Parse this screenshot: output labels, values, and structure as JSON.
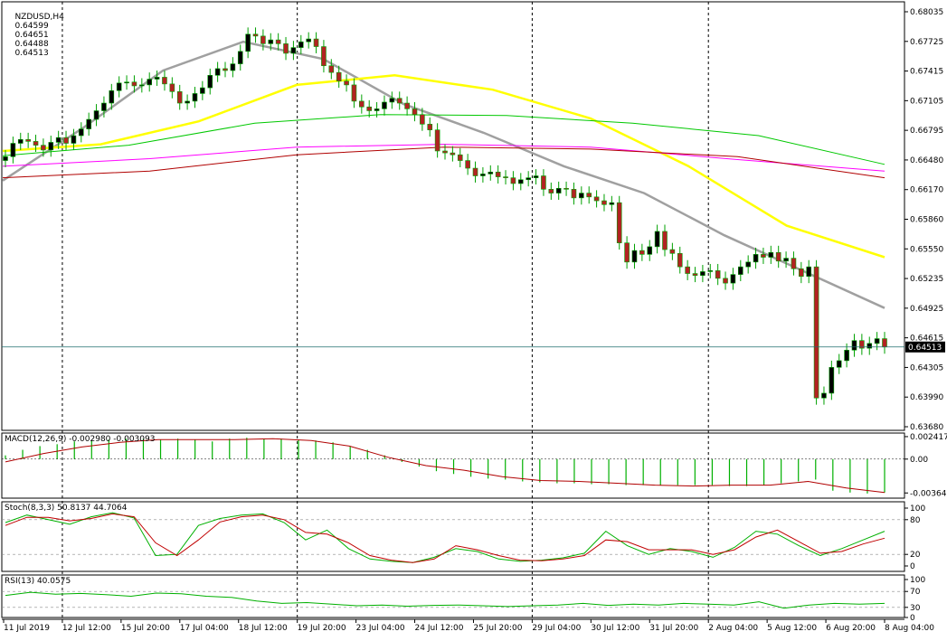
{
  "chart_data": [
    {
      "type": "candlestick",
      "symbol": "NZDUSD",
      "timeframe": "H4",
      "ohlc_header": {
        "open": "0.64599",
        "high": "0.64651",
        "low": "0.64488",
        "close": "0.64513"
      },
      "current_price": 0.64513,
      "current_price_label": "0.64513",
      "ylim": [
        0.6368,
        0.6808
      ],
      "y_ticks": [
        "0.68035",
        "0.67725",
        "0.67415",
        "0.67105",
        "0.66795",
        "0.66480",
        "0.66170",
        "0.65860",
        "0.65550",
        "0.65235",
        "0.64925",
        "0.64615",
        "0.64305",
        "0.63990",
        "0.63680"
      ],
      "x_ticks": [
        "11 Jul 2019",
        "12 Jul 12:00",
        "15 Jul 20:00",
        "17 Jul 04:00",
        "18 Jul 12:00",
        "19 Jul 20:00",
        "23 Jul 04:00",
        "24 Jul 12:00",
        "25 Jul 20:00",
        "29 Jul 04:00",
        "30 Jul 12:00",
        "31 Jul 20:00",
        "2 Aug 04:00",
        "5 Aug 12:00",
        "6 Aug 20:00",
        "8 Aug 04:00"
      ],
      "day_separators": [
        "12 Jul 12:00",
        "19 Jul 20:00",
        "29 Jul 04:00",
        "2 Aug 04:00"
      ],
      "candles_close": [
        0.665,
        0.6664,
        0.6668,
        0.6666,
        0.6662,
        0.6657,
        0.6665,
        0.667,
        0.6664,
        0.6672,
        0.6679,
        0.6689,
        0.6698,
        0.6706,
        0.6719,
        0.6727,
        0.6728,
        0.6724,
        0.6725,
        0.6731,
        0.6733,
        0.6726,
        0.6718,
        0.6706,
        0.6708,
        0.6716,
        0.6722,
        0.6735,
        0.6742,
        0.674,
        0.6747,
        0.676,
        0.6778,
        0.6776,
        0.6768,
        0.6772,
        0.6768,
        0.6758,
        0.6764,
        0.677,
        0.6773,
        0.6765,
        0.6745,
        0.6738,
        0.6729,
        0.6725,
        0.6708,
        0.6702,
        0.6698,
        0.67,
        0.6707,
        0.6711,
        0.6706,
        0.67,
        0.6694,
        0.6684,
        0.6678,
        0.6656,
        0.6654,
        0.6652,
        0.6646,
        0.6638,
        0.663,
        0.6632,
        0.6634,
        0.6629,
        0.6628,
        0.6622,
        0.6626,
        0.6628,
        0.663,
        0.6616,
        0.6612,
        0.6617,
        0.6616,
        0.6607,
        0.6612,
        0.6608,
        0.6604,
        0.66,
        0.6602,
        0.656,
        0.654,
        0.6552,
        0.6548,
        0.6556,
        0.6572,
        0.6553,
        0.6549,
        0.6535,
        0.6528,
        0.6526,
        0.653,
        0.6531,
        0.6523,
        0.6518,
        0.6527,
        0.6535,
        0.654,
        0.6548,
        0.6545,
        0.655,
        0.6541,
        0.6544,
        0.6533,
        0.6525,
        0.6535,
        0.6398,
        0.6403,
        0.643,
        0.6437,
        0.6448,
        0.6458,
        0.645,
        0.6455,
        0.646,
        0.64513
      ],
      "indicators": {
        "moving_averages": [
          {
            "color": "#a0a0a0",
            "values": [
              0.6625,
              0.668,
              0.674,
              0.677,
              0.6752,
              0.6705,
              0.6675,
              0.664,
              0.6612,
              0.6568,
              0.653,
              0.6492
            ]
          },
          {
            "color": "#ffff00",
            "values": [
              0.6656,
              0.6663,
              0.6687,
              0.6725,
              0.6735,
              0.672,
              0.669,
              0.664,
              0.6578,
              0.6545
            ]
          },
          {
            "color": "#00c800",
            "values": [
              0.6651,
              0.6662,
              0.6685,
              0.6694,
              0.6693,
              0.6685,
              0.6672,
              0.6642
            ]
          },
          {
            "color": "#ff00ff",
            "values": [
              0.664,
              0.6648,
              0.666,
              0.6663,
              0.666,
              0.6647,
              0.6635
            ]
          },
          {
            "color": "#b00000",
            "values": [
              0.6628,
              0.6635,
              0.6652,
              0.666,
              0.6658,
              0.665,
              0.6628
            ]
          }
        ]
      }
    },
    {
      "type": "macd",
      "label": "MACD(12,26,9) -0.002980 -0.003093",
      "y_ticks": [
        "0.002417",
        "0.00",
        "-0.003641"
      ],
      "ylim": [
        -0.0042,
        0.0028
      ],
      "histogram": [
        0.0004,
        0.001,
        0.0014,
        0.0016,
        0.0019,
        0.002,
        0.0021,
        0.0022,
        0.0022,
        0.0021,
        0.0022,
        0.0021,
        0.0019,
        0.0022,
        0.0023,
        0.0022,
        0.0022,
        0.0021,
        0.002,
        0.0018,
        0.0014,
        0.001,
        0.0004,
        -0.0003,
        -0.0008,
        -0.0013,
        -0.0016,
        -0.0019,
        -0.0021,
        -0.0022,
        -0.0024,
        -0.0025,
        -0.0026,
        -0.0026,
        -0.0027,
        -0.0027,
        -0.0028,
        -0.0028,
        -0.0028,
        -0.0028,
        -0.0028,
        -0.0028,
        -0.0029,
        -0.0029,
        -0.0028,
        -0.0026,
        -0.0024,
        -0.0022,
        -0.0034,
        -0.0036,
        -0.0037,
        -0.0036
      ],
      "signal": [
        -0.0003,
        0.0006,
        0.0013,
        0.0018,
        0.0021,
        0.0021,
        0.0021,
        0.0022,
        0.002,
        0.0014,
        0.0002,
        -0.0007,
        -0.0012,
        -0.0019,
        -0.0023,
        -0.0024,
        -0.0026,
        -0.0028,
        -0.0029,
        -0.0028,
        -0.0028,
        -0.0024,
        -0.0031,
        -0.0036
      ]
    },
    {
      "type": "stochastic",
      "label": "Stoch(8,3,3) 50.8137 44.7064",
      "y_ticks": [
        "100",
        "80",
        "20",
        "0"
      ],
      "ylim": [
        0,
        100
      ],
      "main": [
        75,
        88,
        80,
        72,
        85,
        92,
        83,
        18,
        20,
        70,
        82,
        88,
        90,
        75,
        45,
        62,
        30,
        12,
        8,
        6,
        15,
        30,
        25,
        12,
        8,
        10,
        14,
        22,
        60,
        35,
        20,
        30,
        25,
        15,
        32,
        60,
        55,
        35,
        18,
        30,
        45,
        60
      ],
      "signal": [
        70,
        84,
        84,
        78,
        82,
        90,
        85,
        40,
        18,
        45,
        76,
        85,
        88,
        80,
        58,
        55,
        40,
        18,
        10,
        6,
        12,
        35,
        28,
        18,
        10,
        9,
        12,
        18,
        45,
        42,
        28,
        28,
        28,
        20,
        28,
        50,
        62,
        42,
        22,
        25,
        38,
        48
      ]
    },
    {
      "type": "rsi",
      "label": "RSI(13) 40.0575",
      "y_ticks": [
        "100",
        "70",
        "30",
        "0"
      ],
      "ylim": [
        0,
        100
      ],
      "values": [
        60,
        68,
        63,
        65,
        62,
        58,
        66,
        64,
        58,
        55,
        46,
        40,
        42,
        38,
        34,
        36,
        33,
        35,
        36,
        34,
        32,
        34,
        36,
        40,
        35,
        38,
        36,
        40,
        38,
        36,
        44,
        28,
        36,
        40,
        38,
        40
      ]
    }
  ]
}
